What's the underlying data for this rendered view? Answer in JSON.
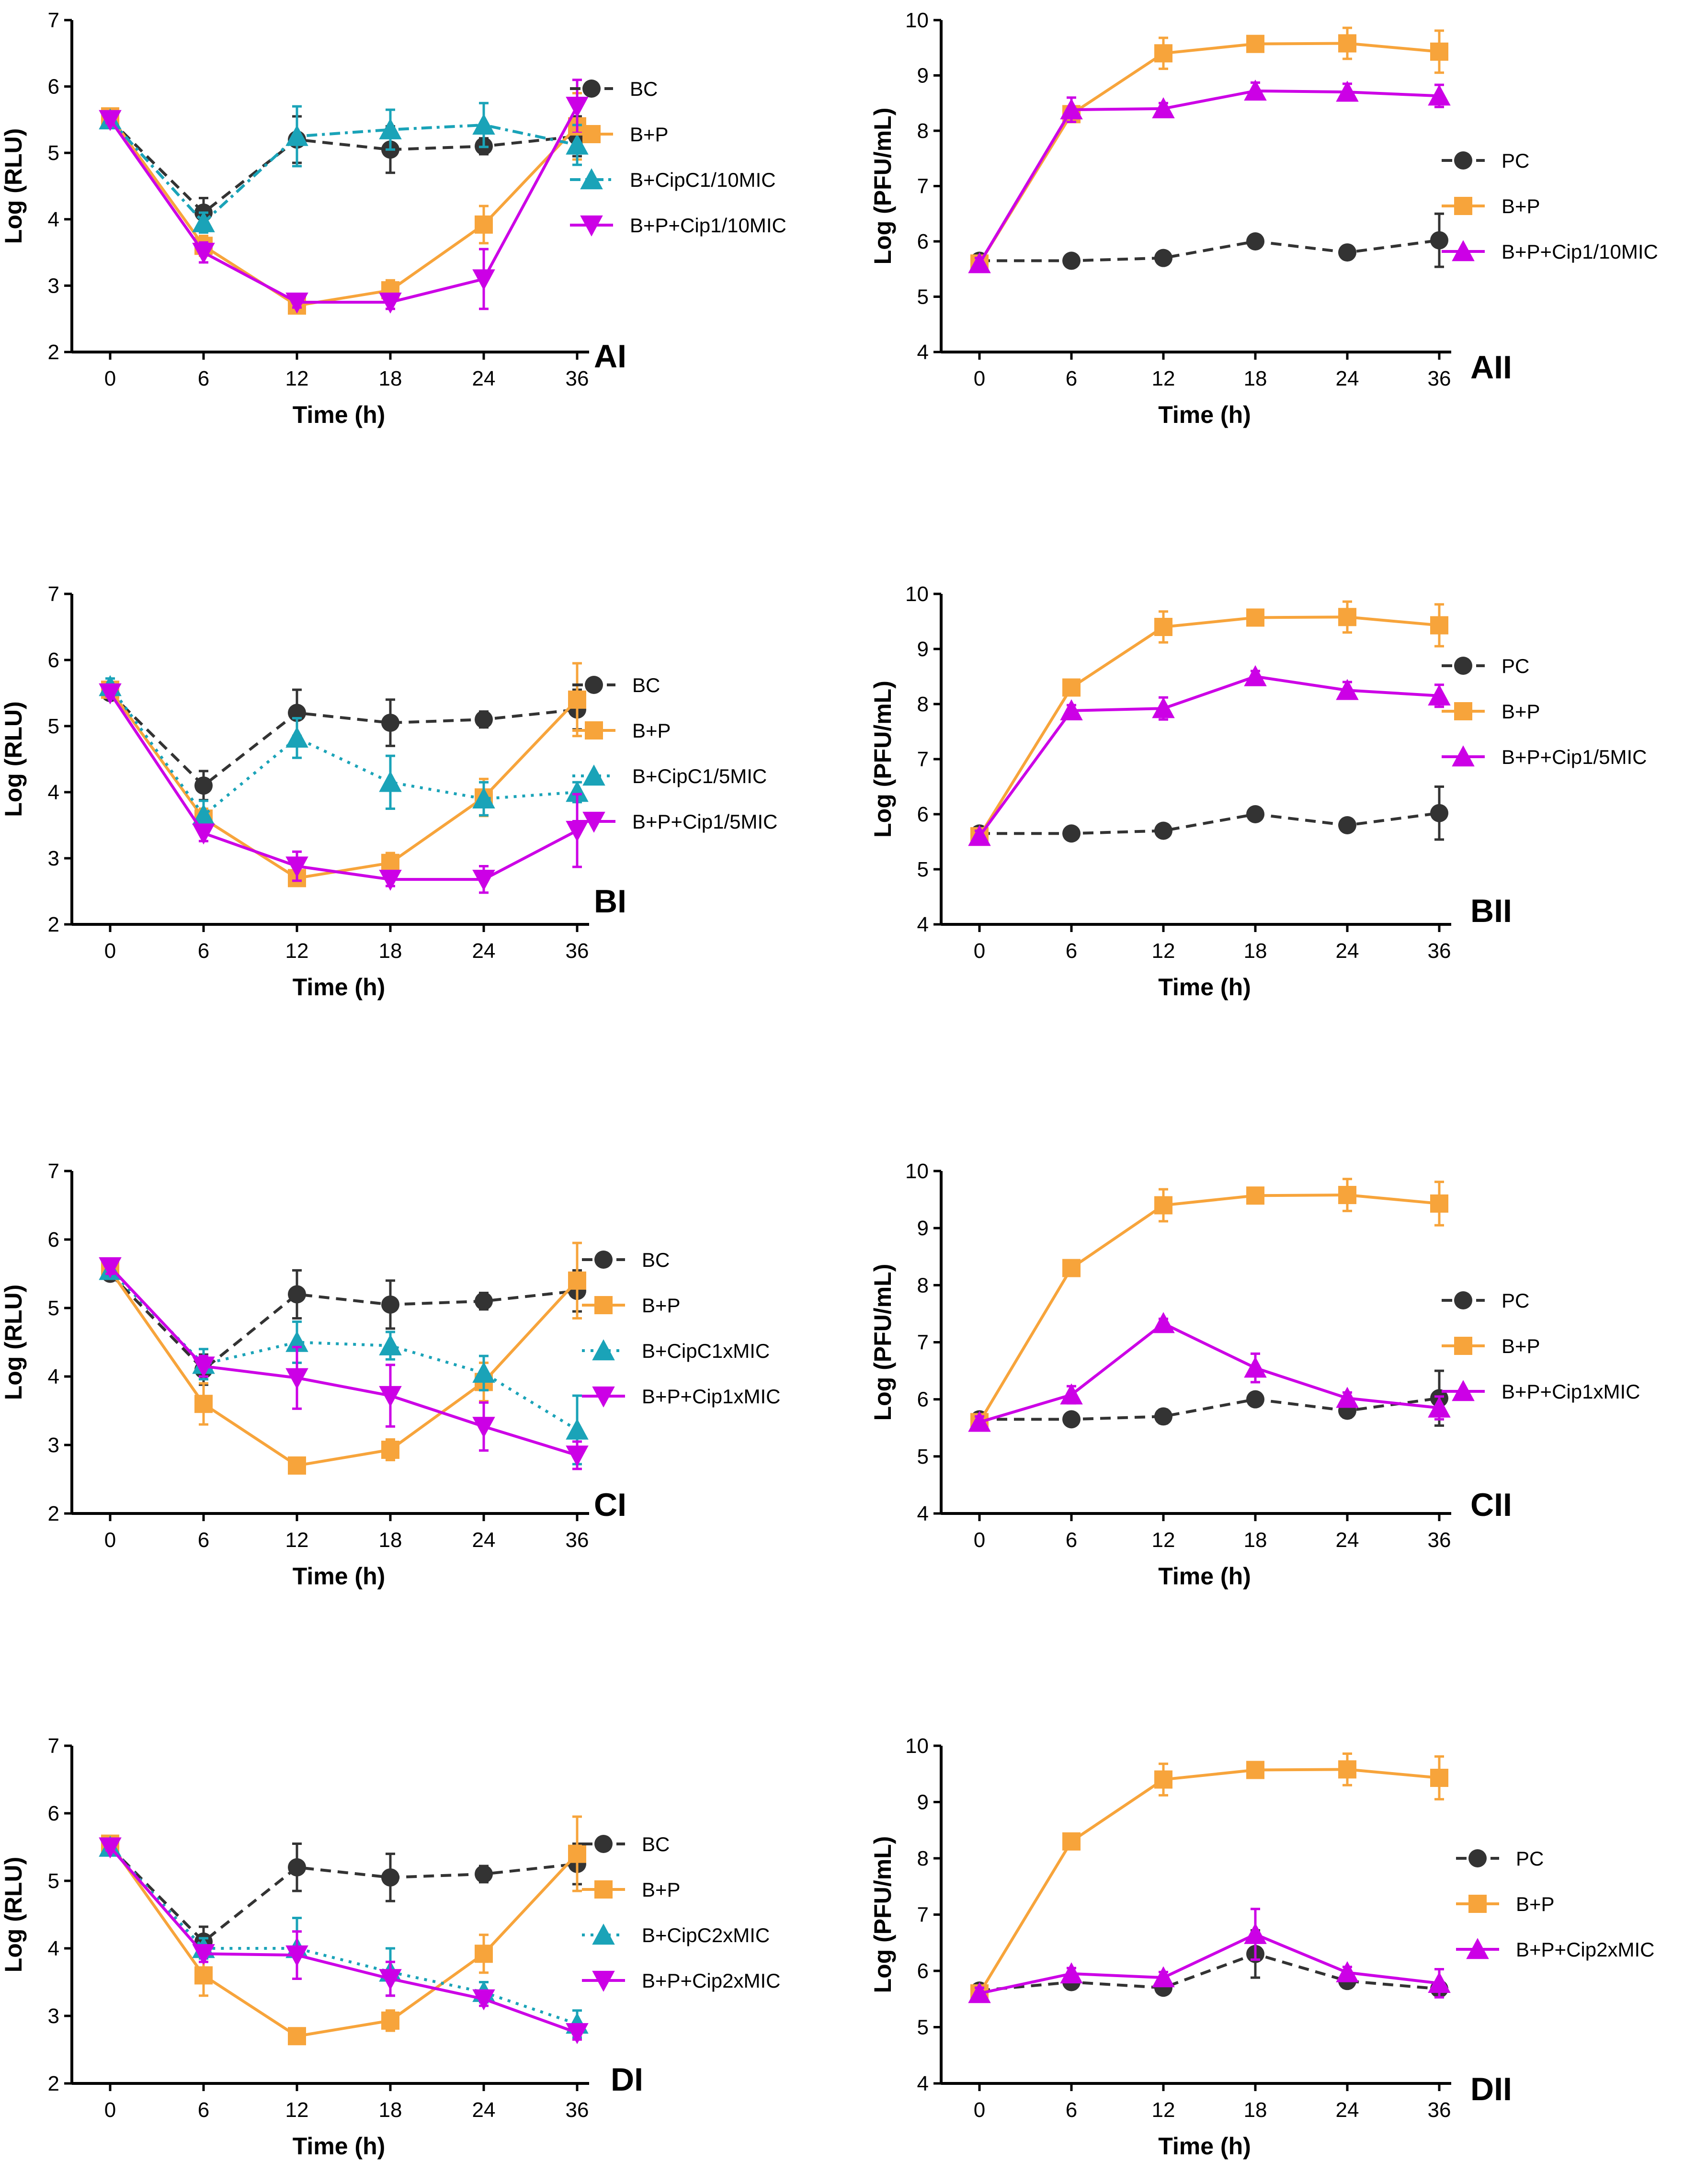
{
  "colors": {
    "black": "#333333",
    "orange": "#F7A43B",
    "teal": "#1AA3B8",
    "magenta": "#CC00E6"
  },
  "chart_data": [
    {
      "panel": "AI",
      "type": "line",
      "xlabel": "Time (h)",
      "ylabel": "Log (RLU)",
      "x": [
        0,
        6,
        12,
        18,
        24,
        36
      ],
      "xticks": [
        "0",
        "6",
        "12",
        "18",
        "24",
        "36"
      ],
      "ylim": [
        2,
        7
      ],
      "yticks": [
        "2",
        "3",
        "4",
        "5",
        "6",
        "7"
      ],
      "series": [
        {
          "name": "BC",
          "color": "#333333",
          "marker": "circle",
          "dash": "dashed",
          "values": [
            5.5,
            4.1,
            5.2,
            5.05,
            5.1,
            5.25
          ],
          "errors": [
            0.05,
            0.22,
            0.35,
            0.35,
            0.12,
            0.3
          ]
        },
        {
          "name": "B+P",
          "color": "#F7A43B",
          "marker": "square",
          "dash": "solid",
          "values": [
            5.55,
            3.6,
            2.7,
            2.93,
            3.92,
            5.4
          ],
          "errors": [
            0.05,
            0.15,
            0.05,
            0.15,
            0.28,
            0.5
          ]
        },
        {
          "name": "B+CipC1/10MIC",
          "color": "#1AA3B8",
          "marker": "triangle-up",
          "dash": "dashdot",
          "values": [
            5.5,
            3.95,
            5.25,
            5.35,
            5.42,
            5.12
          ],
          "errors": [
            0.05,
            0.15,
            0.45,
            0.3,
            0.33,
            0.3
          ]
        },
        {
          "name": "B+P+Cip1/10MIC",
          "color": "#CC00E6",
          "marker": "triangle-down",
          "dash": "solid",
          "values": [
            5.5,
            3.5,
            2.75,
            2.75,
            3.1,
            5.7
          ],
          "errors": [
            0.05,
            0.15,
            0.08,
            0.1,
            0.45,
            0.4
          ]
        }
      ]
    },
    {
      "panel": "AII",
      "type": "line",
      "xlabel": "Time (h)",
      "ylabel": "Log (PFU/mL)",
      "x": [
        0,
        6,
        12,
        18,
        24,
        36
      ],
      "xticks": [
        "0",
        "6",
        "12",
        "18",
        "24",
        "36"
      ],
      "ylim": [
        4,
        10
      ],
      "yticks": [
        "4",
        "5",
        "6",
        "7",
        "8",
        "9",
        "10"
      ],
      "series": [
        {
          "name": "PC",
          "color": "#333333",
          "marker": "circle",
          "dash": "dashed",
          "values": [
            5.65,
            5.65,
            5.7,
            6.0,
            5.8,
            6.02
          ],
          "errors": [
            0.12,
            0.05,
            0.12,
            0.05,
            0.12,
            0.48
          ]
        },
        {
          "name": "B+P",
          "color": "#F7A43B",
          "marker": "square",
          "dash": "solid",
          "values": [
            5.6,
            8.3,
            9.4,
            9.57,
            9.58,
            9.43
          ],
          "errors": [
            0.1,
            0.08,
            0.28,
            0.12,
            0.28,
            0.38
          ]
        },
        {
          "name": "B+P+Cip1/10MIC",
          "color": "#CC00E6",
          "marker": "triangle-up",
          "dash": "solid",
          "values": [
            5.6,
            8.38,
            8.4,
            8.72,
            8.7,
            8.63
          ],
          "errors": [
            0.1,
            0.22,
            0.1,
            0.15,
            0.15,
            0.2
          ]
        }
      ]
    },
    {
      "panel": "BI",
      "type": "line",
      "xlabel": "Time (h)",
      "ylabel": "Log (RLU)",
      "x": [
        0,
        6,
        12,
        18,
        24,
        36
      ],
      "xticks": [
        "0",
        "6",
        "12",
        "18",
        "24",
        "36"
      ],
      "ylim": [
        2,
        7
      ],
      "yticks": [
        "2",
        "3",
        "4",
        "5",
        "6",
        "7"
      ],
      "series": [
        {
          "name": "BC",
          "color": "#333333",
          "marker": "circle",
          "dash": "dashed",
          "values": [
            5.5,
            4.1,
            5.2,
            5.05,
            5.1,
            5.25
          ],
          "errors": [
            0.05,
            0.22,
            0.35,
            0.35,
            0.12,
            0.3
          ]
        },
        {
          "name": "B+P",
          "color": "#F7A43B",
          "marker": "square",
          "dash": "solid",
          "values": [
            5.55,
            3.6,
            2.7,
            2.93,
            3.92,
            5.4
          ],
          "errors": [
            0.05,
            0.15,
            0.05,
            0.15,
            0.28,
            0.55
          ]
        },
        {
          "name": "B+CipC1/5MIC",
          "color": "#1AA3B8",
          "marker": "triangle-up",
          "dash": "dotted",
          "values": [
            5.6,
            3.65,
            4.82,
            4.15,
            3.9,
            4.0
          ],
          "errors": [
            0.12,
            0.22,
            0.3,
            0.4,
            0.25,
            0.15
          ]
        },
        {
          "name": "B+P+Cip1/5MIC",
          "color": "#CC00E6",
          "marker": "triangle-down",
          "dash": "solid",
          "values": [
            5.5,
            3.38,
            2.88,
            2.68,
            2.68,
            3.42
          ],
          "errors": [
            0.05,
            0.12,
            0.22,
            0.1,
            0.2,
            0.55
          ]
        }
      ]
    },
    {
      "panel": "BII",
      "type": "line",
      "xlabel": "Time (h)",
      "ylabel": "Log (PFU/mL)",
      "x": [
        0,
        6,
        12,
        18,
        24,
        36
      ],
      "xticks": [
        "0",
        "6",
        "12",
        "18",
        "24",
        "36"
      ],
      "ylim": [
        4,
        10
      ],
      "yticks": [
        "4",
        "5",
        "6",
        "7",
        "8",
        "9",
        "10"
      ],
      "series": [
        {
          "name": "PC",
          "color": "#333333",
          "marker": "circle",
          "dash": "dashed",
          "values": [
            5.65,
            5.65,
            5.7,
            6.0,
            5.8,
            6.02
          ],
          "errors": [
            0.12,
            0.05,
            0.12,
            0.05,
            0.12,
            0.48
          ]
        },
        {
          "name": "B+P",
          "color": "#F7A43B",
          "marker": "square",
          "dash": "solid",
          "values": [
            5.6,
            8.3,
            9.4,
            9.57,
            9.58,
            9.43
          ],
          "errors": [
            0.1,
            0.08,
            0.28,
            0.12,
            0.28,
            0.38
          ]
        },
        {
          "name": "B+P+Cip1/5MIC",
          "color": "#CC00E6",
          "marker": "triangle-up",
          "dash": "solid",
          "values": [
            5.6,
            7.88,
            7.92,
            8.5,
            8.25,
            8.15
          ],
          "errors": [
            0.1,
            0.1,
            0.2,
            0.1,
            0.15,
            0.2
          ]
        }
      ]
    },
    {
      "panel": "CI",
      "type": "line",
      "xlabel": "Time (h)",
      "ylabel": "Log (RLU)",
      "x": [
        0,
        6,
        12,
        18,
        24,
        36
      ],
      "xticks": [
        "0",
        "6",
        "12",
        "18",
        "24",
        "36"
      ],
      "ylim": [
        2,
        7
      ],
      "yticks": [
        "2",
        "3",
        "4",
        "5",
        "6",
        "7"
      ],
      "series": [
        {
          "name": "BC",
          "color": "#333333",
          "marker": "circle",
          "dash": "dashed",
          "values": [
            5.5,
            4.1,
            5.2,
            5.05,
            5.1,
            5.25
          ],
          "errors": [
            0.05,
            0.22,
            0.35,
            0.35,
            0.12,
            0.3
          ]
        },
        {
          "name": "B+P",
          "color": "#F7A43B",
          "marker": "square",
          "dash": "solid",
          "values": [
            5.55,
            3.6,
            2.7,
            2.93,
            3.92,
            5.4
          ],
          "errors": [
            0.05,
            0.3,
            0.05,
            0.15,
            0.28,
            0.55
          ]
        },
        {
          "name": "B+CipC1xMIC",
          "color": "#1AA3B8",
          "marker": "triangle-up",
          "dash": "dotted",
          "values": [
            5.55,
            4.18,
            4.5,
            4.45,
            4.05,
            3.22
          ],
          "errors": [
            0.1,
            0.22,
            0.3,
            0.2,
            0.25,
            0.5
          ]
        },
        {
          "name": "B+P+Cip1xMIC",
          "color": "#CC00E6",
          "marker": "triangle-down",
          "dash": "solid",
          "values": [
            5.6,
            4.15,
            3.98,
            3.72,
            3.27,
            2.85
          ],
          "errors": [
            0.1,
            0.15,
            0.45,
            0.45,
            0.35,
            0.2
          ]
        }
      ]
    },
    {
      "panel": "CII",
      "type": "line",
      "xlabel": "Time (h)",
      "ylabel": "Log (PFU/mL)",
      "x": [
        0,
        6,
        12,
        18,
        24,
        36
      ],
      "xticks": [
        "0",
        "6",
        "12",
        "18",
        "24",
        "36"
      ],
      "ylim": [
        4,
        10
      ],
      "yticks": [
        "4",
        "5",
        "6",
        "7",
        "8",
        "9",
        "10"
      ],
      "series": [
        {
          "name": "PC",
          "color": "#333333",
          "marker": "circle",
          "dash": "dashed",
          "values": [
            5.65,
            5.65,
            5.7,
            6.0,
            5.8,
            6.02
          ],
          "errors": [
            0.12,
            0.05,
            0.12,
            0.05,
            0.12,
            0.48
          ]
        },
        {
          "name": "B+P",
          "color": "#F7A43B",
          "marker": "square",
          "dash": "solid",
          "values": [
            5.6,
            8.3,
            9.4,
            9.57,
            9.58,
            9.43
          ],
          "errors": [
            0.1,
            0.08,
            0.28,
            0.12,
            0.28,
            0.38
          ]
        },
        {
          "name": "B+P+Cip1xMIC",
          "color": "#CC00E6",
          "marker": "triangle-up",
          "dash": "solid",
          "values": [
            5.6,
            6.08,
            7.33,
            6.55,
            6.02,
            5.85
          ],
          "errors": [
            0.1,
            0.15,
            0.08,
            0.25,
            0.1,
            0.2
          ]
        }
      ]
    },
    {
      "panel": "DI",
      "type": "line",
      "xlabel": "Time (h)",
      "ylabel": "Log (RLU)",
      "x": [
        0,
        6,
        12,
        18,
        24,
        36
      ],
      "xticks": [
        "0",
        "6",
        "12",
        "18",
        "24",
        "36"
      ],
      "ylim": [
        2,
        7
      ],
      "yticks": [
        "2",
        "3",
        "4",
        "5",
        "6",
        "7"
      ],
      "series": [
        {
          "name": "BC",
          "color": "#333333",
          "marker": "circle",
          "dash": "dashed",
          "values": [
            5.5,
            4.1,
            5.2,
            5.05,
            5.1,
            5.25
          ],
          "errors": [
            0.05,
            0.22,
            0.35,
            0.35,
            0.12,
            0.3
          ]
        },
        {
          "name": "B+P",
          "color": "#F7A43B",
          "marker": "square",
          "dash": "solid",
          "values": [
            5.55,
            3.6,
            2.7,
            2.93,
            3.92,
            5.4
          ],
          "errors": [
            0.05,
            0.3,
            0.05,
            0.15,
            0.28,
            0.55
          ]
        },
        {
          "name": "B+CipC2xMIC",
          "color": "#1AA3B8",
          "marker": "triangle-up",
          "dash": "dotted",
          "values": [
            5.5,
            4.0,
            4.0,
            3.65,
            3.35,
            2.88
          ],
          "errors": [
            0.05,
            0.15,
            0.45,
            0.35,
            0.15,
            0.2
          ]
        },
        {
          "name": "B+P+Cip2xMIC",
          "color": "#CC00E6",
          "marker": "triangle-down",
          "dash": "solid",
          "values": [
            5.5,
            3.92,
            3.9,
            3.55,
            3.25,
            2.75
          ],
          "errors": [
            0.05,
            0.12,
            0.35,
            0.25,
            0.1,
            0.1
          ]
        }
      ]
    },
    {
      "panel": "DII",
      "type": "line",
      "xlabel": "Time (h)",
      "ylabel": "Log (PFU/mL)",
      "x": [
        0,
        6,
        12,
        18,
        24,
        36
      ],
      "xticks": [
        "0",
        "6",
        "12",
        "18",
        "24",
        "36"
      ],
      "ylim": [
        4,
        10
      ],
      "yticks": [
        "4",
        "5",
        "6",
        "7",
        "8",
        "9",
        "10"
      ],
      "series": [
        {
          "name": "PC",
          "color": "#333333",
          "marker": "circle",
          "dash": "dashed",
          "values": [
            5.65,
            5.8,
            5.7,
            6.3,
            5.82,
            5.68
          ],
          "errors": [
            0.1,
            0.12,
            0.1,
            0.42,
            0.12,
            0.12
          ]
        },
        {
          "name": "B+P",
          "color": "#F7A43B",
          "marker": "square",
          "dash": "solid",
          "values": [
            5.6,
            8.3,
            9.4,
            9.57,
            9.58,
            9.43
          ],
          "errors": [
            0.1,
            0.08,
            0.28,
            0.12,
            0.28,
            0.38
          ]
        },
        {
          "name": "B+P+Cip2xMIC",
          "color": "#CC00E6",
          "marker": "triangle-up",
          "dash": "solid",
          "values": [
            5.6,
            5.95,
            5.88,
            6.65,
            5.97,
            5.78
          ],
          "errors": [
            0.1,
            0.1,
            0.1,
            0.45,
            0.1,
            0.25
          ]
        }
      ]
    }
  ]
}
